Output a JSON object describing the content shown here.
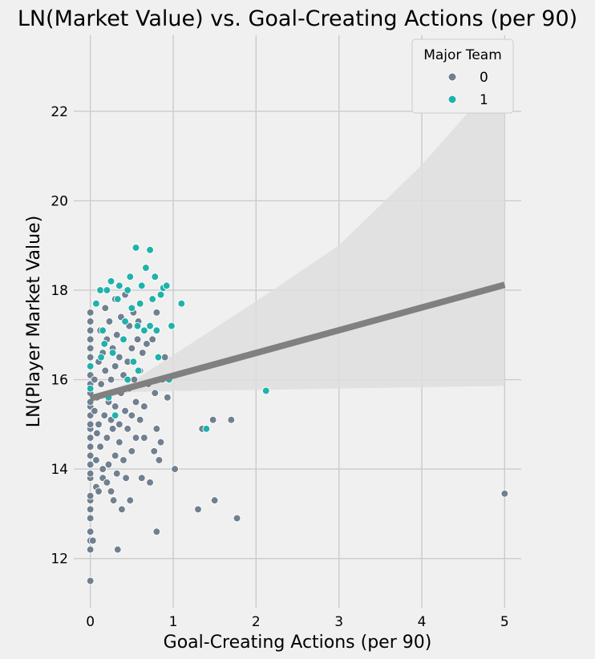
{
  "chart_data": {
    "type": "scatter",
    "title": "LN(Market Value) vs. Goal-Creating Actions (per 90)",
    "xlabel": "Goal-Creating Actions (per 90)",
    "ylabel": "LN(Player Market Value)",
    "xlim": [
      -0.2,
      5.2
    ],
    "ylim": [
      10.9,
      23.7
    ],
    "xticks": [
      0,
      1,
      2,
      3,
      4,
      5
    ],
    "yticks": [
      12,
      14,
      16,
      18,
      20,
      22
    ],
    "grid": true,
    "legend": {
      "title": "Major Team",
      "placement": "top-right",
      "entries": [
        {
          "label": "0",
          "color": "#708090"
        },
        {
          "label": "1",
          "color": "#20b2aa"
        }
      ]
    },
    "regression": {
      "color": "#808080",
      "band_color": "#dedede",
      "line": [
        [
          0,
          15.58
        ],
        [
          5,
          18.12
        ]
      ],
      "ci_upper": [
        [
          0,
          15.62
        ],
        [
          0.5,
          15.95
        ],
        [
          1,
          16.55
        ],
        [
          2,
          17.75
        ],
        [
          3,
          19.0
        ],
        [
          4,
          20.8
        ],
        [
          5,
          22.9
        ]
      ],
      "ci_lower": [
        [
          0,
          15.54
        ],
        [
          0.5,
          15.72
        ],
        [
          1,
          15.75
        ],
        [
          2,
          15.77
        ],
        [
          3,
          15.8
        ],
        [
          4,
          15.83
        ],
        [
          5,
          15.86
        ]
      ]
    },
    "series": [
      {
        "name": "0",
        "color": "#708090",
        "points": [
          [
            0,
            11.5
          ],
          [
            0,
            12.2
          ],
          [
            0,
            12.4
          ],
          [
            0,
            12.6
          ],
          [
            0,
            12.9
          ],
          [
            0,
            13.1
          ],
          [
            0,
            13.3
          ],
          [
            0,
            13.4
          ],
          [
            0,
            13.8
          ],
          [
            0,
            13.9
          ],
          [
            0,
            14.1
          ],
          [
            0,
            14.3
          ],
          [
            0,
            14.5
          ],
          [
            0,
            14.7
          ],
          [
            0,
            14.9
          ],
          [
            0,
            15.0
          ],
          [
            0,
            15.2
          ],
          [
            0,
            15.4
          ],
          [
            0,
            15.5
          ],
          [
            0,
            15.7
          ],
          [
            0,
            15.9
          ],
          [
            0,
            16.1
          ],
          [
            0,
            16.3
          ],
          [
            0,
            16.5
          ],
          [
            0,
            16.7
          ],
          [
            0,
            16.9
          ],
          [
            0,
            17.1
          ],
          [
            0,
            17.3
          ],
          [
            0,
            17.5
          ],
          [
            0.03,
            12.4
          ],
          [
            0.05,
            15.3
          ],
          [
            0.05,
            16.0
          ],
          [
            0.07,
            13.6
          ],
          [
            0.07,
            14.2
          ],
          [
            0.08,
            14.8
          ],
          [
            0.08,
            15.6
          ],
          [
            0.1,
            16.4
          ],
          [
            0.1,
            13.5
          ],
          [
            0.1,
            15.0
          ],
          [
            0.12,
            17.1
          ],
          [
            0.12,
            14.5
          ],
          [
            0.13,
            15.9
          ],
          [
            0.15,
            16.6
          ],
          [
            0.15,
            14.0
          ],
          [
            0.15,
            13.8
          ],
          [
            0.17,
            15.2
          ],
          [
            0.18,
            16.2
          ],
          [
            0.18,
            17.6
          ],
          [
            0.2,
            14.7
          ],
          [
            0.2,
            13.7
          ],
          [
            0.2,
            16.9
          ],
          [
            0.22,
            15.5
          ],
          [
            0.22,
            14.1
          ],
          [
            0.23,
            17.3
          ],
          [
            0.25,
            16.0
          ],
          [
            0.25,
            15.1
          ],
          [
            0.25,
            13.5
          ],
          [
            0.27,
            16.7
          ],
          [
            0.27,
            14.9
          ],
          [
            0.28,
            13.3
          ],
          [
            0.3,
            17.8
          ],
          [
            0.3,
            16.3
          ],
          [
            0.3,
            15.4
          ],
          [
            0.3,
            14.3
          ],
          [
            0.32,
            17.0
          ],
          [
            0.32,
            13.9
          ],
          [
            0.33,
            12.2
          ],
          [
            0.35,
            16.5
          ],
          [
            0.35,
            15.0
          ],
          [
            0.35,
            14.6
          ],
          [
            0.37,
            17.4
          ],
          [
            0.37,
            15.7
          ],
          [
            0.38,
            13.1
          ],
          [
            0.4,
            16.9
          ],
          [
            0.4,
            16.1
          ],
          [
            0.4,
            14.2
          ],
          [
            0.42,
            15.3
          ],
          [
            0.42,
            17.9
          ],
          [
            0.43,
            13.8
          ],
          [
            0.45,
            16.4
          ],
          [
            0.45,
            14.9
          ],
          [
            0.47,
            15.8
          ],
          [
            0.47,
            17.2
          ],
          [
            0.48,
            13.3
          ],
          [
            0.5,
            16.7
          ],
          [
            0.5,
            15.2
          ],
          [
            0.5,
            14.4
          ],
          [
            0.52,
            17.5
          ],
          [
            0.53,
            16.0
          ],
          [
            0.55,
            15.5
          ],
          [
            0.55,
            14.7
          ],
          [
            0.57,
            16.9
          ],
          [
            0.58,
            17.3
          ],
          [
            0.6,
            16.2
          ],
          [
            0.6,
            15.1
          ],
          [
            0.62,
            13.8
          ],
          [
            0.63,
            16.6
          ],
          [
            0.65,
            15.4
          ],
          [
            0.65,
            14.7
          ],
          [
            0.68,
            16.8
          ],
          [
            0.7,
            15.9
          ],
          [
            0.72,
            13.7
          ],
          [
            0.75,
            16.9
          ],
          [
            0.77,
            14.4
          ],
          [
            0.78,
            15.7
          ],
          [
            0.8,
            12.6
          ],
          [
            0.8,
            14.9
          ],
          [
            0.8,
            17.5
          ],
          [
            0.83,
            14.2
          ],
          [
            0.85,
            14.6
          ],
          [
            0.87,
            16.0
          ],
          [
            0.9,
            16.5
          ],
          [
            0.93,
            15.6
          ],
          [
            1.02,
            14.0
          ],
          [
            1.3,
            13.1
          ],
          [
            1.35,
            14.9
          ],
          [
            1.48,
            15.1
          ],
          [
            1.5,
            13.3
          ],
          [
            1.7,
            15.1
          ],
          [
            1.77,
            12.9
          ],
          [
            5.0,
            13.45
          ]
        ]
      },
      {
        "name": "1",
        "color": "#20b2aa",
        "points": [
          [
            0,
            15.8
          ],
          [
            0,
            16.3
          ],
          [
            0.07,
            17.7
          ],
          [
            0.12,
            18.0
          ],
          [
            0.13,
            16.5
          ],
          [
            0.15,
            17.1
          ],
          [
            0.17,
            16.8
          ],
          [
            0.2,
            18.0
          ],
          [
            0.22,
            15.6
          ],
          [
            0.25,
            18.2
          ],
          [
            0.27,
            16.6
          ],
          [
            0.3,
            15.2
          ],
          [
            0.33,
            17.8
          ],
          [
            0.35,
            18.1
          ],
          [
            0.4,
            16.9
          ],
          [
            0.42,
            17.3
          ],
          [
            0.45,
            18.0
          ],
          [
            0.45,
            16.0
          ],
          [
            0.48,
            18.3
          ],
          [
            0.5,
            17.6
          ],
          [
            0.52,
            16.4
          ],
          [
            0.55,
            18.95
          ],
          [
            0.57,
            17.2
          ],
          [
            0.58,
            16.2
          ],
          [
            0.6,
            17.7
          ],
          [
            0.62,
            18.1
          ],
          [
            0.65,
            17.1
          ],
          [
            0.67,
            18.5
          ],
          [
            0.72,
            18.9
          ],
          [
            0.72,
            17.2
          ],
          [
            0.75,
            17.8
          ],
          [
            0.78,
            18.3
          ],
          [
            0.8,
            17.1
          ],
          [
            0.82,
            16.5
          ],
          [
            0.85,
            17.9
          ],
          [
            0.88,
            18.05
          ],
          [
            0.92,
            18.1
          ],
          [
            0.95,
            16.0
          ],
          [
            0.98,
            17.2
          ],
          [
            1.1,
            17.7
          ],
          [
            1.4,
            14.9
          ],
          [
            2.12,
            15.75
          ]
        ]
      }
    ]
  }
}
